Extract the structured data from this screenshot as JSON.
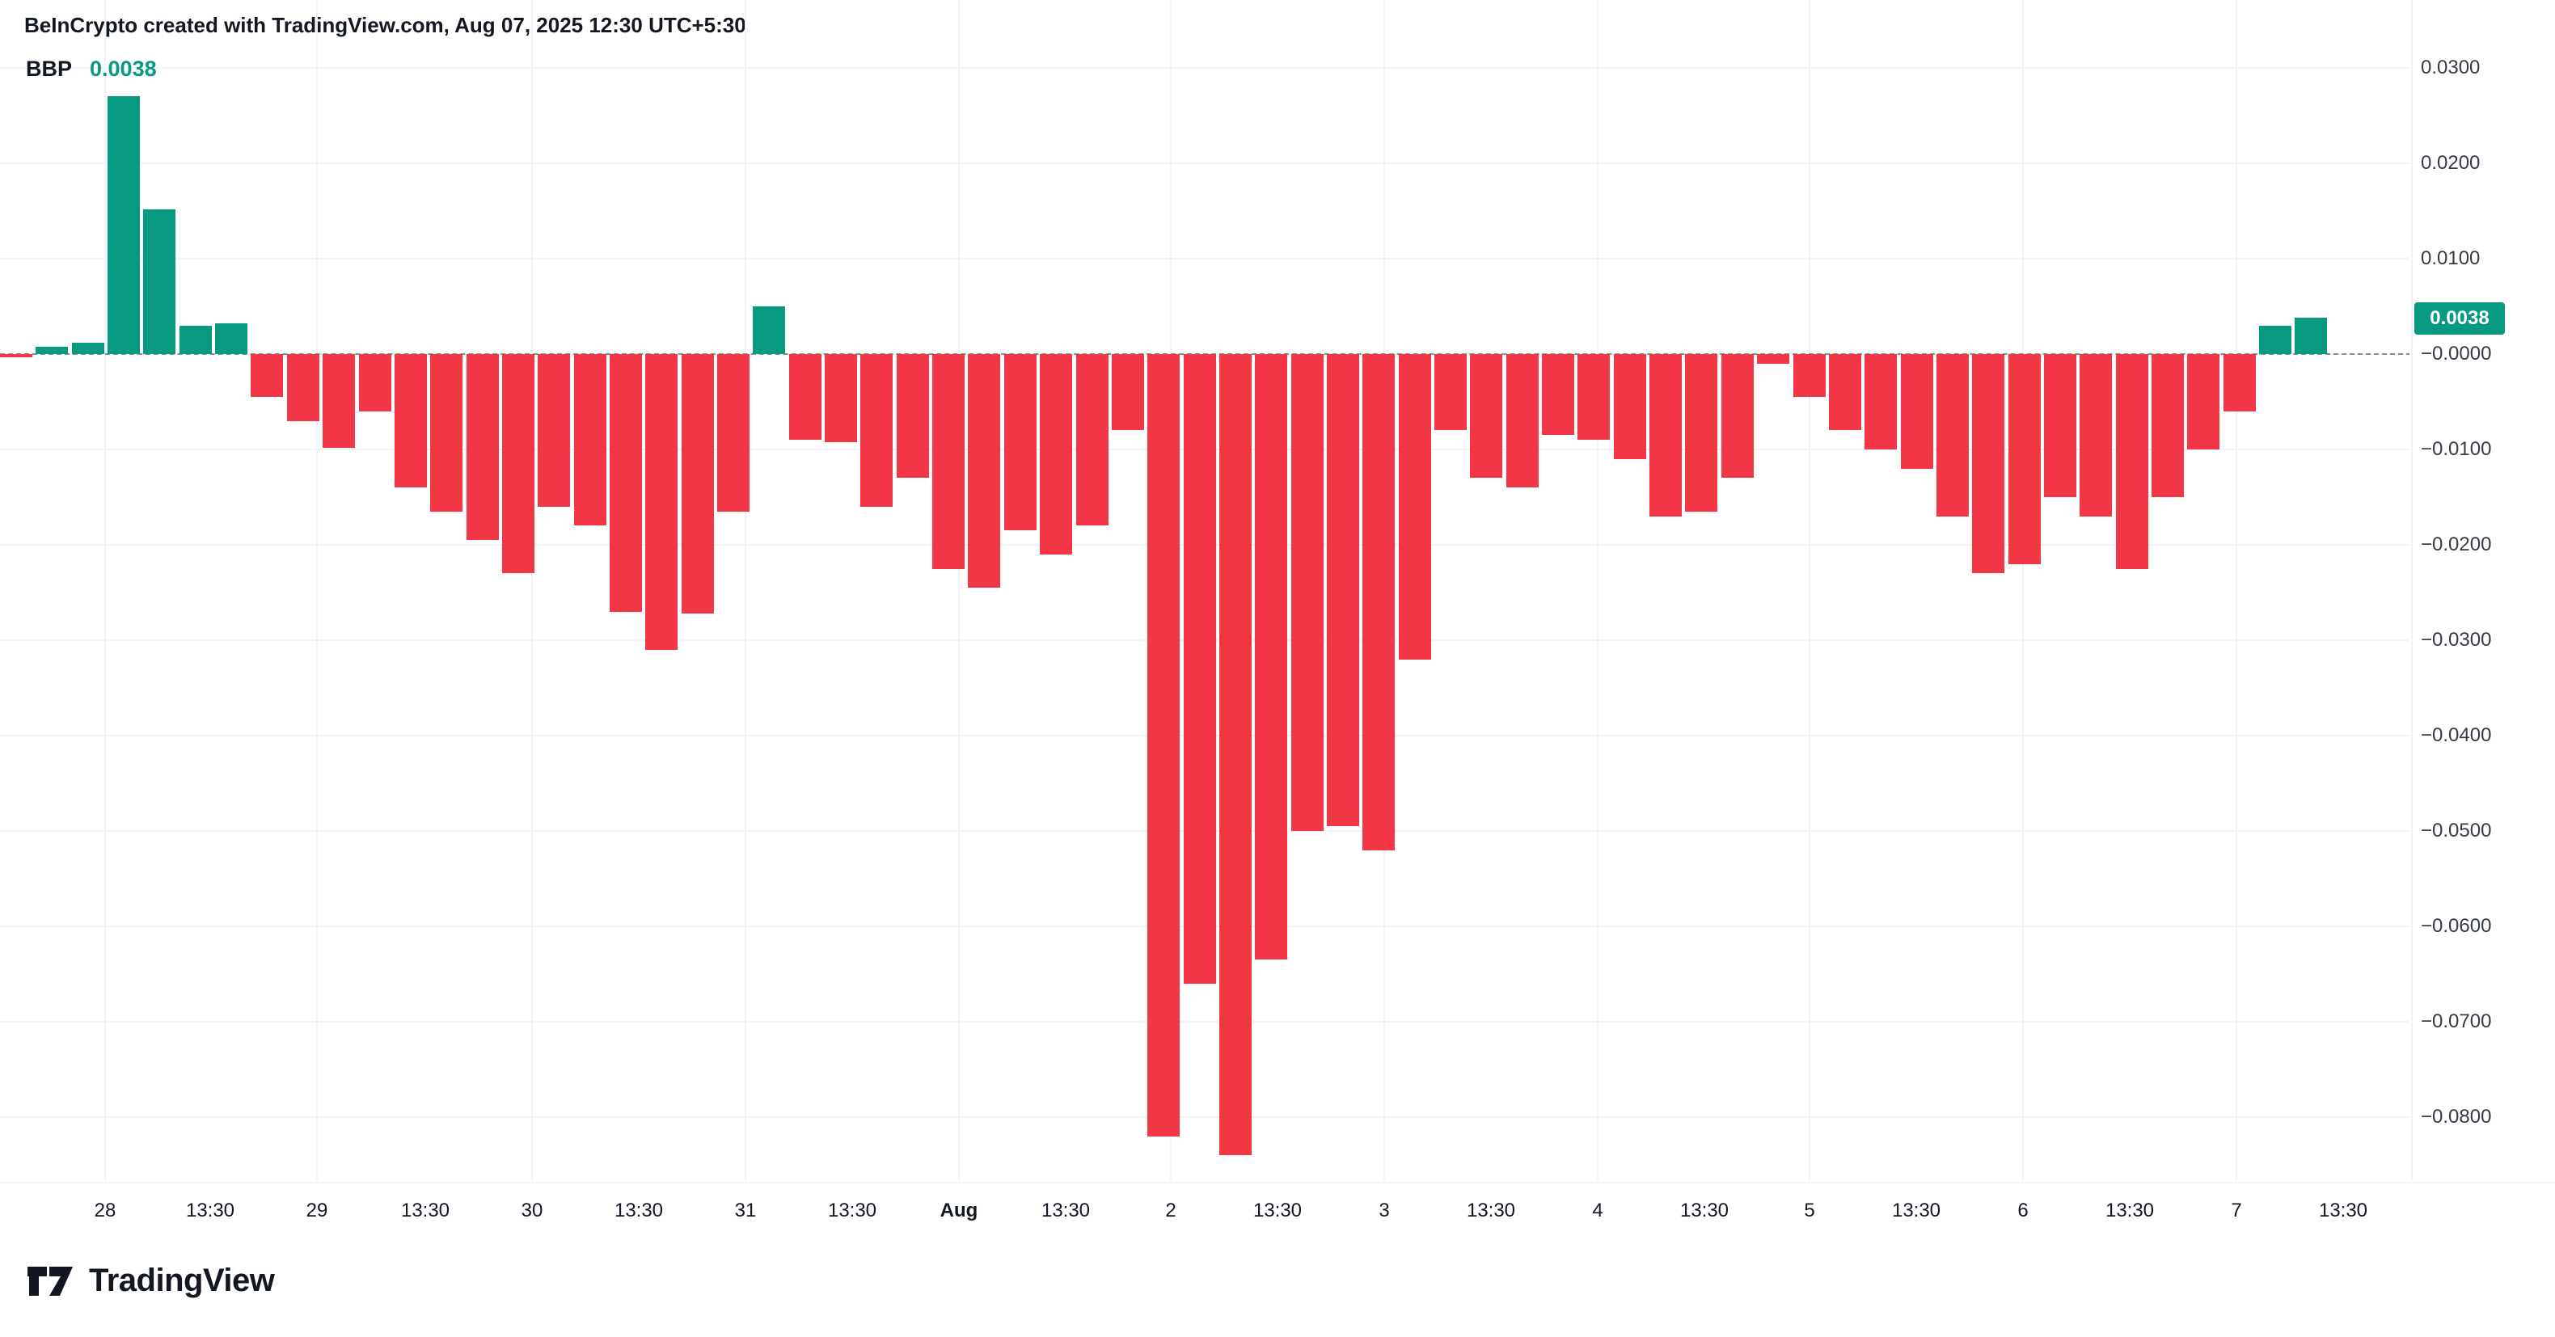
{
  "header": {
    "text": "BeInCrypto created with TradingView.com, Aug 07, 2025 12:30 UTC+5:30"
  },
  "legend": {
    "symbol": "BBP",
    "value": "0.0038"
  },
  "colors": {
    "positive": "#089981",
    "negative": "#F23645",
    "badge_bg": "#089981",
    "grid": "#f0f3fa",
    "axis_text": "#363a45",
    "zero_line": "#787b86",
    "text": "#131722"
  },
  "footer": {
    "brand": "TradingView"
  },
  "chart_data": {
    "type": "bar",
    "title": "BBP (Bull Bear Power) histogram",
    "ylabel": "",
    "xlabel": "",
    "ylim": [
      -0.0875,
      0.0315
    ],
    "grid": true,
    "zero_line_dashed": true,
    "last_value_badge": "0.0038",
    "y_ticks": [
      {
        "label": "0.0300",
        "value": 0.03
      },
      {
        "label": "0.0200",
        "value": 0.02
      },
      {
        "label": "0.0100",
        "value": 0.01
      },
      {
        "label": "−0.0000",
        "value": 0.0
      },
      {
        "label": "−0.0100",
        "value": -0.01
      },
      {
        "label": "−0.0200",
        "value": -0.02
      },
      {
        "label": "−0.0300",
        "value": -0.03
      },
      {
        "label": "−0.0400",
        "value": -0.04
      },
      {
        "label": "−0.0500",
        "value": -0.05
      },
      {
        "label": "−0.0600",
        "value": -0.06
      },
      {
        "label": "−0.0700",
        "value": -0.07
      },
      {
        "label": "−0.0800",
        "value": -0.08
      }
    ],
    "x_labels": [
      {
        "label": "28",
        "day": true,
        "emphasis": false
      },
      {
        "label": "13:30",
        "day": false,
        "emphasis": false
      },
      {
        "label": "29",
        "day": true,
        "emphasis": false
      },
      {
        "label": "13:30",
        "day": false,
        "emphasis": false
      },
      {
        "label": "30",
        "day": true,
        "emphasis": false
      },
      {
        "label": "13:30",
        "day": false,
        "emphasis": false
      },
      {
        "label": "31",
        "day": true,
        "emphasis": false
      },
      {
        "label": "13:30",
        "day": false,
        "emphasis": false
      },
      {
        "label": "Aug",
        "day": true,
        "emphasis": true
      },
      {
        "label": "13:30",
        "day": false,
        "emphasis": false
      },
      {
        "label": "2",
        "day": true,
        "emphasis": false
      },
      {
        "label": "13:30",
        "day": false,
        "emphasis": false
      },
      {
        "label": "3",
        "day": true,
        "emphasis": false
      },
      {
        "label": "13:30",
        "day": false,
        "emphasis": false
      },
      {
        "label": "4",
        "day": true,
        "emphasis": false
      },
      {
        "label": "13:30",
        "day": false,
        "emphasis": false
      },
      {
        "label": "5",
        "day": true,
        "emphasis": false
      },
      {
        "label": "13:30",
        "day": false,
        "emphasis": false
      },
      {
        "label": "6",
        "day": true,
        "emphasis": false
      },
      {
        "label": "13:30",
        "day": false,
        "emphasis": false
      },
      {
        "label": "7",
        "day": true,
        "emphasis": false
      },
      {
        "label": "13:30",
        "day": false,
        "emphasis": false
      }
    ],
    "bars": [
      -0.0003,
      0.0008,
      0.0012,
      0.027,
      0.0152,
      0.003,
      0.0032,
      -0.0045,
      -0.007,
      -0.0098,
      -0.006,
      -0.014,
      -0.0165,
      -0.0195,
      -0.023,
      -0.016,
      -0.018,
      -0.027,
      -0.031,
      -0.0272,
      -0.0165,
      0.005,
      -0.009,
      -0.0092,
      -0.016,
      -0.013,
      -0.0225,
      -0.0245,
      -0.0185,
      -0.021,
      -0.018,
      -0.008,
      -0.082,
      -0.066,
      -0.084,
      -0.0635,
      -0.05,
      -0.0495,
      -0.052,
      -0.032,
      -0.008,
      -0.013,
      -0.014,
      -0.0085,
      -0.009,
      -0.011,
      -0.017,
      -0.0165,
      -0.013,
      -0.001,
      -0.0045,
      -0.008,
      -0.01,
      -0.012,
      -0.017,
      -0.023,
      -0.022,
      -0.015,
      -0.017,
      -0.0225,
      -0.015,
      -0.01,
      -0.006,
      0.003,
      0.0038
    ]
  }
}
